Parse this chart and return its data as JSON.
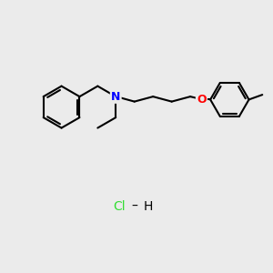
{
  "background_color": "#ebebeb",
  "line_color": "#000000",
  "N_color": "#0000ff",
  "O_color": "#ff0000",
  "Cl_color": "#33dd33",
  "bond_lw": 1.5,
  "figsize": [
    3.0,
    3.0
  ],
  "dpi": 100,
  "xlim": [
    0,
    10
  ],
  "ylim": [
    0,
    10
  ]
}
